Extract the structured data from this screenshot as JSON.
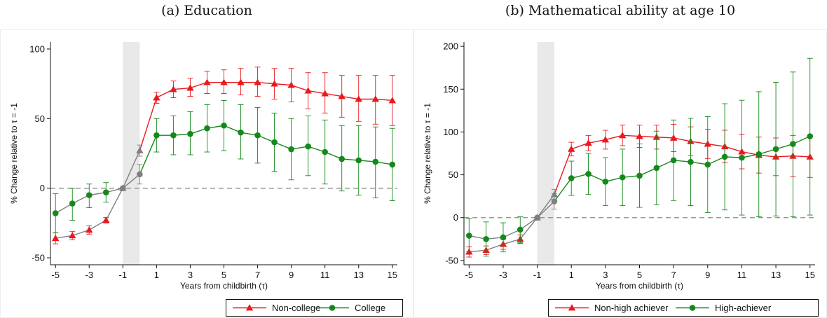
{
  "chart_data": [
    {
      "type": "line",
      "title": "(a) Education",
      "xlabel": "Years from childbirth (τ)",
      "ylabel": "% Change relative to τ = -1",
      "x": [
        -5,
        -4,
        -3,
        -2,
        -1,
        0,
        1,
        2,
        3,
        4,
        5,
        6,
        7,
        8,
        9,
        10,
        11,
        12,
        13,
        14,
        15
      ],
      "xticks": [
        -5,
        -3,
        -1,
        1,
        3,
        5,
        7,
        9,
        11,
        13,
        15
      ],
      "xtick_labels": [
        "-5",
        "-3",
        "-1",
        "1",
        "3",
        "5",
        "7",
        "9",
        "11",
        "13",
        "15"
      ],
      "yticks": [
        -50,
        0,
        50,
        100
      ],
      "ytick_labels": [
        "-50",
        "0",
        "50",
        "100"
      ],
      "xlim": [
        -5.3,
        15.3
      ],
      "ylim": [
        -55,
        105
      ],
      "shaded_band": [
        -1,
        0
      ],
      "reference_line": 0,
      "grid": false,
      "legend_position": "bottom-right",
      "series": [
        {
          "name": "Non-college",
          "color": "#e8191f",
          "marker": "triangle",
          "y": [
            -36,
            -34,
            -30,
            -23,
            0,
            27,
            65,
            71,
            72,
            76,
            76,
            76,
            76,
            75,
            74,
            70,
            68,
            66,
            64,
            64,
            63
          ],
          "low": [
            -40,
            -37,
            -33,
            -25,
            0,
            23,
            61,
            65,
            66,
            68,
            68,
            67,
            66,
            64,
            62,
            57,
            54,
            51,
            48,
            46,
            45
          ],
          "high": [
            -32,
            -31,
            -27,
            -21,
            0,
            31,
            69,
            77,
            79,
            84,
            85,
            86,
            87,
            86,
            86,
            83,
            83,
            81,
            81,
            81,
            81
          ]
        },
        {
          "name": "College",
          "color": "#14891a",
          "marker": "circle",
          "y": [
            -18,
            -11,
            -5,
            -3,
            0,
            10,
            38,
            38,
            39,
            43,
            45,
            40,
            38,
            33,
            28,
            30,
            26,
            21,
            20,
            19,
            17
          ],
          "low": [
            -32,
            -23,
            -14,
            -10,
            0,
            3,
            26,
            24,
            24,
            26,
            27,
            21,
            18,
            12,
            6,
            9,
            3,
            -2,
            -5,
            -7,
            -9
          ],
          "high": [
            -4,
            0,
            3,
            4,
            0,
            17,
            50,
            52,
            55,
            60,
            63,
            60,
            58,
            54,
            50,
            52,
            49,
            45,
            45,
            44,
            43
          ]
        }
      ]
    },
    {
      "type": "line",
      "title": "(b) Mathematical ability at age 10",
      "xlabel": "Years from childbirth (τ)",
      "ylabel": "% Change relative to τ = -1",
      "x": [
        -5,
        -4,
        -3,
        -2,
        -1,
        0,
        1,
        2,
        3,
        4,
        5,
        6,
        7,
        8,
        9,
        10,
        11,
        12,
        13,
        14,
        15
      ],
      "xticks": [
        -5,
        -3,
        -1,
        1,
        3,
        5,
        7,
        9,
        11,
        13,
        15
      ],
      "xtick_labels": [
        "-5",
        "-3",
        "-1",
        "1",
        "3",
        "5",
        "7",
        "9",
        "11",
        "13",
        "15"
      ],
      "yticks": [
        -50,
        0,
        50,
        100,
        150,
        200
      ],
      "ytick_labels": [
        "-50",
        "0",
        "50",
        "100",
        "150",
        "200"
      ],
      "xlim": [
        -5.3,
        15.3
      ],
      "ylim": [
        -55,
        205
      ],
      "shaded_band": [
        -1,
        0
      ],
      "reference_line": 0,
      "grid": false,
      "legend_position": "bottom-right",
      "series": [
        {
          "name": "Non-high achiever",
          "color": "#e8191f",
          "marker": "triangle",
          "y": [
            -40,
            -38,
            -31,
            -25,
            0,
            27,
            80,
            87,
            91,
            96,
            95,
            94,
            93,
            89,
            86,
            83,
            77,
            73,
            71,
            72,
            71
          ],
          "low": [
            -46,
            -43,
            -37,
            -30,
            0,
            21,
            72,
            78,
            80,
            84,
            82,
            80,
            77,
            73,
            69,
            64,
            57,
            52,
            49,
            48,
            47
          ],
          "high": [
            -34,
            -33,
            -25,
            -20,
            0,
            33,
            88,
            96,
            102,
            108,
            108,
            108,
            109,
            106,
            103,
            102,
            97,
            94,
            93,
            96,
            95
          ]
        },
        {
          "name": "High-achiever",
          "color": "#14891a",
          "marker": "circle",
          "y": [
            -21,
            -25,
            -23,
            -14,
            0,
            19,
            46,
            51,
            42,
            47,
            49,
            58,
            67,
            65,
            62,
            71,
            70,
            74,
            80,
            86,
            95
          ],
          "low": [
            -40,
            -45,
            -40,
            -29,
            0,
            10,
            26,
            27,
            14,
            14,
            12,
            15,
            20,
            14,
            6,
            9,
            3,
            1,
            2,
            1,
            3
          ],
          "high": [
            -1,
            -5,
            -6,
            1,
            0,
            28,
            66,
            75,
            70,
            80,
            86,
            101,
            114,
            116,
            118,
            133,
            137,
            147,
            158,
            170,
            186
          ]
        }
      ]
    }
  ]
}
